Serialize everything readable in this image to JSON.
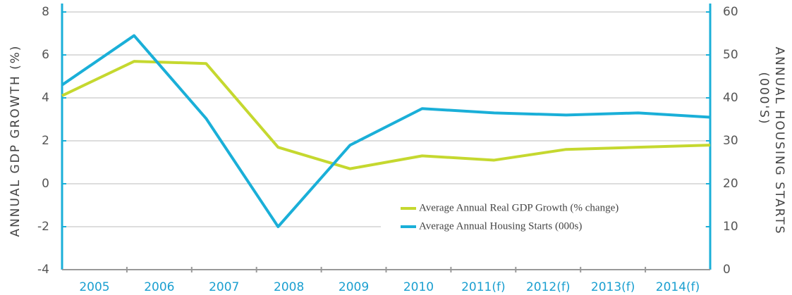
{
  "chart_data": {
    "type": "line",
    "y_label": "ANNUAL GDP GROWTH (%)",
    "y2_label": [
      "ANNUAL HOUSING STARTS",
      "(000'S)"
    ],
    "categories": [
      "2005",
      "2006",
      "2007",
      "2008",
      "2009",
      "2010",
      "2011(f)",
      "2012(f)",
      "2013(f)",
      "2014(f)"
    ],
    "series": [
      {
        "name": "Average Annual Real GDP Growth (% change)",
        "color": "#c5d82f",
        "values": [
          4.1,
          5.7,
          5.6,
          1.7,
          0.7,
          1.3,
          1.1,
          1.6,
          1.7,
          1.8
        ]
      },
      {
        "name": "Average Annual Housing Starts (000s)",
        "color": "#1aafd8",
        "axis": "y2",
        "values": [
          43,
          54.5,
          35.2,
          10,
          29,
          37.5,
          36.5,
          36,
          36.5,
          35.5
        ]
      }
    ],
    "ylim": [
      -4,
      8
    ],
    "yticks": [
      -4,
      -2,
      0,
      2,
      4,
      6,
      8
    ],
    "y2lim": [
      0,
      60
    ],
    "y2ticks": [
      0,
      10,
      20,
      30,
      40,
      50,
      60
    ],
    "grid": true,
    "legend": "lower right"
  }
}
